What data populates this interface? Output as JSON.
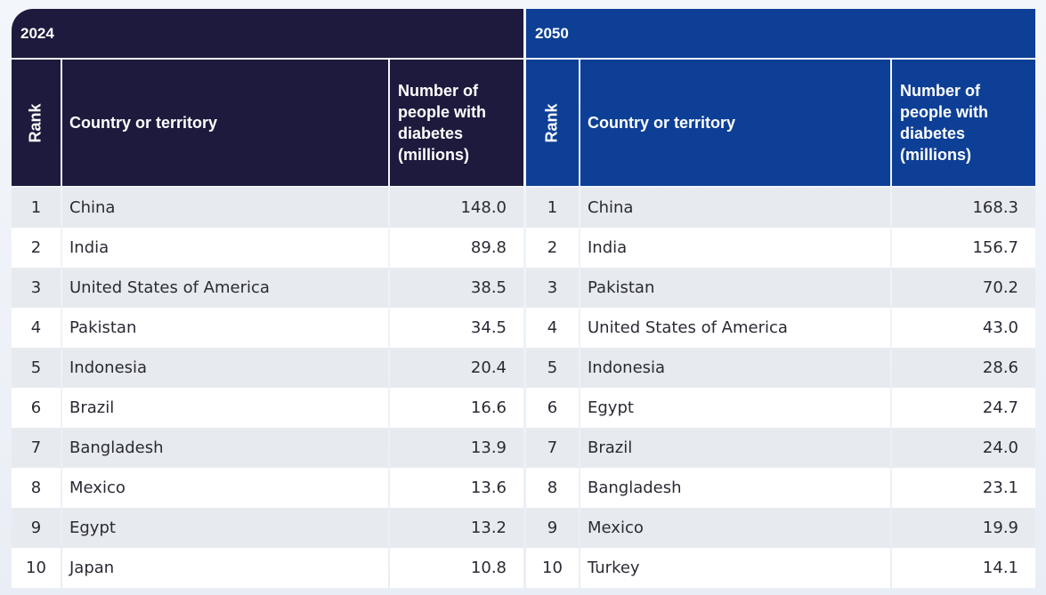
{
  "colors": {
    "panel_2024": "#1d1a3d",
    "panel_2050": "#0d3f96",
    "row_alt": "#e7eaef"
  },
  "headers": {
    "rank": "Rank",
    "country": "Country or territory",
    "number": "Number of\npeople with\ndiabetes\n(millions)"
  },
  "tables": [
    {
      "year": "2024",
      "rows": [
        {
          "rank": "1",
          "country": "China",
          "value": "148.0"
        },
        {
          "rank": "2",
          "country": "India",
          "value": "89.8"
        },
        {
          "rank": "3",
          "country": "United States of America",
          "value": "38.5"
        },
        {
          "rank": "4",
          "country": "Pakistan",
          "value": "34.5"
        },
        {
          "rank": "5",
          "country": "Indonesia",
          "value": "20.4"
        },
        {
          "rank": "6",
          "country": "Brazil",
          "value": "16.6"
        },
        {
          "rank": "7",
          "country": "Bangladesh",
          "value": "13.9"
        },
        {
          "rank": "8",
          "country": "Mexico",
          "value": "13.6"
        },
        {
          "rank": "9",
          "country": "Egypt",
          "value": "13.2"
        },
        {
          "rank": "10",
          "country": "Japan",
          "value": "10.8"
        }
      ]
    },
    {
      "year": "2050",
      "rows": [
        {
          "rank": "1",
          "country": "China",
          "value": "168.3"
        },
        {
          "rank": "2",
          "country": "India",
          "value": "156.7"
        },
        {
          "rank": "3",
          "country": "Pakistan",
          "value": "70.2"
        },
        {
          "rank": "4",
          "country": "United States of America",
          "value": "43.0"
        },
        {
          "rank": "5",
          "country": "Indonesia",
          "value": "28.6"
        },
        {
          "rank": "6",
          "country": "Egypt",
          "value": "24.7"
        },
        {
          "rank": "7",
          "country": "Brazil",
          "value": "24.0"
        },
        {
          "rank": "8",
          "country": "Bangladesh",
          "value": "23.1"
        },
        {
          "rank": "9",
          "country": "Mexico",
          "value": "19.9"
        },
        {
          "rank": "10",
          "country": "Turkey",
          "value": "14.1"
        }
      ]
    }
  ]
}
